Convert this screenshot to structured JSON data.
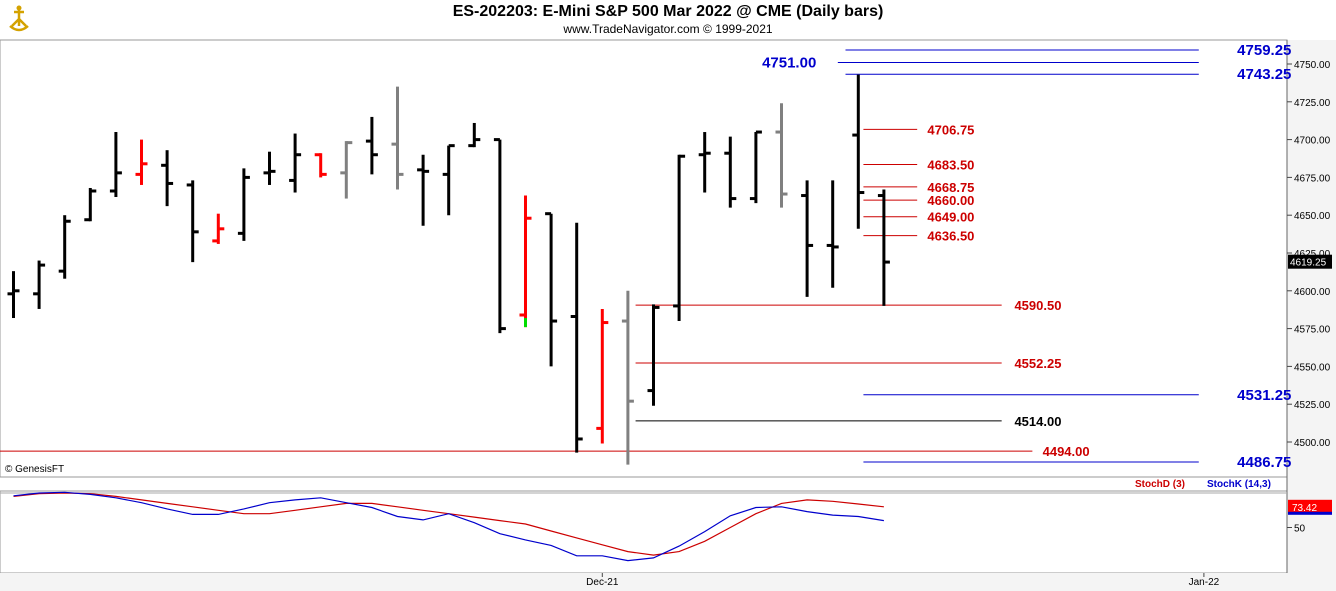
{
  "header": {
    "title": "ES-202203:  E-Mini S&P 500 Mar 2022 @ CME  (Daily bars)",
    "subtitle": "www.TradeNavigator.com © 1999-2021",
    "watermark": "© GenesisFT"
  },
  "colors": {
    "up": "#000000",
    "red_bar": "#ff0000",
    "gray_bar": "#808080",
    "blue_level": "#0000cc",
    "red_level": "#cc0000",
    "black_level": "#000000",
    "stoch_k": "#0000cc",
    "stoch_d": "#cc0000",
    "last_price_bg": "#000000",
    "osc_value_bg": "#ff0000"
  },
  "chart_data": [
    {
      "type": "ohlc",
      "title": "ES-202203:  E-Mini S&P 500 Mar 2022 @ CME  (Daily bars)",
      "ylim": [
        4485,
        4765
      ],
      "y_ticks": [
        4500,
        4525,
        4550,
        4575,
        4600,
        4625,
        4650,
        4675,
        4700,
        4725,
        4750
      ],
      "y_tick_labels": [
        "4500.00",
        "4525.00",
        "4550.00",
        "4575.00",
        "4600.00",
        "4625.00",
        "4650.00",
        "4675.00",
        "4700.00",
        "4725.00",
        "4750.00"
      ],
      "x_labels": [
        {
          "label": "Dec-21",
          "bar": 23
        },
        {
          "label": "Jan-22",
          "bar": 46.5
        }
      ],
      "last_price": "4619.25",
      "bars": [
        {
          "o": 4598,
          "h": 4613,
          "l": 4582,
          "c": 4600,
          "col": "black"
        },
        {
          "o": 4598,
          "h": 4620,
          "l": 4588,
          "c": 4617,
          "col": "black"
        },
        {
          "o": 4613,
          "h": 4650,
          "l": 4608,
          "c": 4646,
          "col": "black"
        },
        {
          "o": 4647,
          "h": 4668,
          "l": 4646,
          "c": 4666,
          "col": "black"
        },
        {
          "o": 4666,
          "h": 4705,
          "l": 4662,
          "c": 4678,
          "col": "black"
        },
        {
          "o": 4677,
          "h": 4700,
          "l": 4670,
          "c": 4684,
          "col": "red"
        },
        {
          "o": 4683,
          "h": 4693,
          "l": 4656,
          "c": 4671,
          "col": "black"
        },
        {
          "o": 4670,
          "h": 4673,
          "l": 4619,
          "c": 4639,
          "col": "black"
        },
        {
          "o": 4633,
          "h": 4651,
          "l": 4631,
          "c": 4641,
          "col": "red"
        },
        {
          "o": 4638,
          "h": 4681,
          "l": 4633,
          "c": 4675,
          "col": "black"
        },
        {
          "o": 4678,
          "h": 4692,
          "l": 4670,
          "c": 4679,
          "col": "black"
        },
        {
          "o": 4673,
          "h": 4704,
          "l": 4665,
          "c": 4690,
          "col": "black"
        },
        {
          "o": 4690,
          "h": 4691,
          "l": 4675,
          "c": 4677,
          "col": "red"
        },
        {
          "o": 4678,
          "h": 4699,
          "l": 4661,
          "c": 4698,
          "col": "gray"
        },
        {
          "o": 4699,
          "h": 4715,
          "l": 4677,
          "c": 4690,
          "col": "black"
        },
        {
          "o": 4697,
          "h": 4735,
          "l": 4667,
          "c": 4677,
          "col": "gray"
        },
        {
          "o": 4680,
          "h": 4690,
          "l": 4643,
          "c": 4679,
          "col": "black"
        },
        {
          "o": 4677,
          "h": 4696,
          "l": 4650,
          "c": 4696,
          "col": "black"
        },
        {
          "o": 4696,
          "h": 4711,
          "l": 4695,
          "c": 4700,
          "col": "black"
        },
        {
          "o": 4700,
          "h": 4700,
          "l": 4572,
          "c": 4575,
          "col": "black"
        },
        {
          "o": 4584,
          "h": 4663,
          "l": 4576,
          "c": 4648,
          "col": "red"
        },
        {
          "o": 4651,
          "h": 4651,
          "l": 4550,
          "c": 4580,
          "col": "black"
        },
        {
          "o": 4583,
          "h": 4645,
          "l": 4493,
          "c": 4502,
          "col": "black"
        },
        {
          "o": 4509,
          "h": 4588,
          "l": 4499,
          "c": 4579,
          "col": "red"
        },
        {
          "o": 4580,
          "h": 4600,
          "l": 4485,
          "c": 4527,
          "col": "gray"
        },
        {
          "o": 4534,
          "h": 4591,
          "l": 4524,
          "c": 4589,
          "col": "black"
        },
        {
          "o": 4590,
          "h": 4690,
          "l": 4580,
          "c": 4689,
          "col": "black"
        },
        {
          "o": 4690,
          "h": 4705,
          "l": 4665,
          "c": 4691,
          "col": "black"
        },
        {
          "o": 4691,
          "h": 4702,
          "l": 4655,
          "c": 4661,
          "col": "black"
        },
        {
          "o": 4661,
          "h": 4705,
          "l": 4658,
          "c": 4705,
          "col": "black"
        },
        {
          "o": 4705,
          "h": 4724,
          "l": 4655,
          "c": 4664,
          "col": "gray"
        },
        {
          "o": 4663,
          "h": 4673,
          "l": 4596,
          "c": 4630,
          "col": "black"
        },
        {
          "o": 4630,
          "h": 4673,
          "l": 4602,
          "c": 4629,
          "col": "black"
        },
        {
          "o": 4703,
          "h": 4743,
          "l": 4641,
          "c": 4665,
          "col": "black"
        },
        {
          "o": 4663,
          "h": 4667,
          "l": 4590,
          "c": 4619,
          "col": "black"
        }
      ],
      "levels": [
        {
          "label": "4759.25",
          "value": 4759.25,
          "color": "blue",
          "from_bar": 32.5,
          "to_bar": 46.3,
          "label_bar": 47.8,
          "bold": true,
          "big": true
        },
        {
          "label": "4751.00",
          "value": 4751.0,
          "color": "blue",
          "from_bar": 32.2,
          "to_bar": 46.3,
          "label_bar": 30.3,
          "bold": true,
          "big": true,
          "label_left": true
        },
        {
          "label": "4743.25",
          "value": 4743.25,
          "color": "blue",
          "from_bar": 32.5,
          "to_bar": 46.3,
          "label_bar": 47.8,
          "bold": true,
          "big": true
        },
        {
          "label": "4706.75",
          "value": 4706.75,
          "color": "red",
          "from_bar": 33.2,
          "to_bar": 35.3,
          "label_bar": 35.7,
          "bold": true
        },
        {
          "label": "4683.50",
          "value": 4683.5,
          "color": "red",
          "from_bar": 33.2,
          "to_bar": 35.3,
          "label_bar": 35.7,
          "bold": true
        },
        {
          "label": "4668.75",
          "value": 4668.75,
          "color": "red",
          "from_bar": 33.2,
          "to_bar": 35.3,
          "label_bar": 35.7,
          "bold": true
        },
        {
          "label": "4660.00",
          "value": 4660.0,
          "color": "red",
          "from_bar": 33.2,
          "to_bar": 35.3,
          "label_bar": 35.7,
          "bold": true
        },
        {
          "label": "4649.00",
          "value": 4649.0,
          "color": "red",
          "from_bar": 33.2,
          "to_bar": 35.3,
          "label_bar": 35.7,
          "bold": true
        },
        {
          "label": "4636.50",
          "value": 4636.5,
          "color": "red",
          "from_bar": 33.2,
          "to_bar": 35.3,
          "label_bar": 35.7,
          "bold": true
        },
        {
          "label": "4590.50",
          "value": 4590.5,
          "color": "red",
          "from_bar": 24.3,
          "to_bar": 38.6,
          "label_bar": 39.1,
          "bold": true
        },
        {
          "label": "4552.25",
          "value": 4552.25,
          "color": "red",
          "from_bar": 24.3,
          "to_bar": 38.6,
          "label_bar": 39.1,
          "bold": true
        },
        {
          "label": "4531.25",
          "value": 4531.25,
          "color": "blue",
          "from_bar": 33.2,
          "to_bar": 46.3,
          "label_bar": 47.8,
          "bold": true,
          "big": true
        },
        {
          "label": "4514.00",
          "value": 4514.0,
          "color": "black",
          "from_bar": 24.3,
          "to_bar": 38.6,
          "label_bar": 39.1,
          "bold": true
        },
        {
          "label": "4494.00",
          "value": 4494.0,
          "color": "red",
          "from_bar": -1,
          "to_bar": 39.8,
          "label_bar": 40.2,
          "bold": true
        },
        {
          "label": "4486.75",
          "value": 4486.75,
          "color": "blue",
          "from_bar": 33.2,
          "to_bar": 46.3,
          "label_bar": 47.8,
          "bold": true,
          "big": true
        }
      ]
    },
    {
      "type": "line",
      "legend": [
        {
          "name": "StochD (3)",
          "color": "red"
        },
        {
          "name": "StochK (14,3)",
          "color": "blue"
        }
      ],
      "ylim": [
        0,
        100
      ],
      "y_ticks": [
        50
      ],
      "y_tick_labels": [
        "50"
      ],
      "last_value": "73.42",
      "series": [
        {
          "name": "StochD (3)",
          "values": [
            95,
            99,
            100,
            99,
            95,
            90,
            85,
            80,
            75,
            70,
            70,
            75,
            80,
            85,
            85,
            80,
            75,
            70,
            65,
            60,
            55,
            45,
            35,
            25,
            15,
            10,
            15,
            30,
            50,
            70,
            85,
            90,
            88,
            84,
            80
          ]
        },
        {
          "name": "StochK (14,3)",
          "values": [
            96,
            100,
            101,
            98,
            93,
            86,
            77,
            69,
            69,
            77,
            86,
            90,
            93,
            86,
            79,
            66,
            61,
            70,
            57,
            41,
            32,
            24,
            9,
            9,
            2,
            6,
            23,
            44,
            67,
            79,
            80,
            73,
            68,
            66,
            60
          ]
        }
      ]
    }
  ]
}
